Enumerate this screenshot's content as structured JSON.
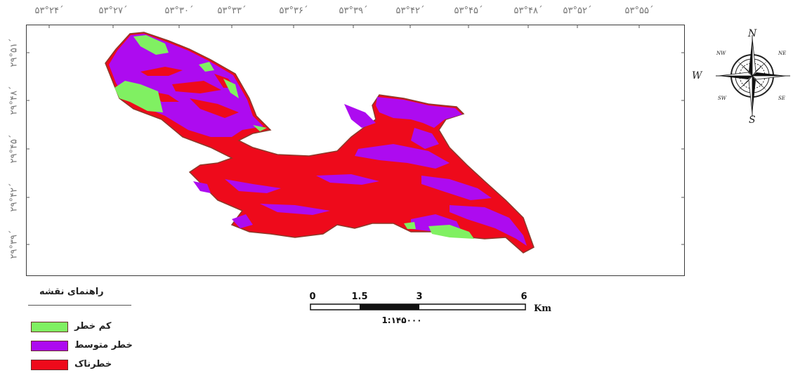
{
  "graticule": {
    "longitudes": [
      "۵۳°۲۴´",
      "۵۳°۲۷´",
      "۵۳°۳۰´",
      "۵۳°۳۳´",
      "۵۳°۳۶´",
      "۵۳°۳۹´",
      "۵۳°۴۲´",
      "۵۳°۴۵´",
      "۵۳°۴۸´",
      "۵۳°۵۲´",
      "۵۳°۵۵´"
    ],
    "latitudes": [
      "۲۹°۵۱´",
      "۲۹°۴۸´",
      "۲۹°۴۵´",
      "۲۹°۴۲´",
      "۲۹°۳۹´"
    ]
  },
  "legend": {
    "title": "راهنمای نقشه",
    "items": [
      {
        "label": "کم خطر",
        "color": "#80f062"
      },
      {
        "label": "خطر متوسط",
        "color": "#ad0bf0"
      },
      {
        "label": "خطرناک",
        "color": "#ee0a1b"
      }
    ]
  },
  "scale_bar": {
    "ticks": [
      "0",
      "1.5",
      "3",
      "6"
    ],
    "unit": "Km",
    "ratio": "1:۱۴۵۰۰۰"
  },
  "north_arrow": {
    "letters": {
      "n": "N",
      "s": "S",
      "w": "W",
      "nw": "NW",
      "ne": "NE",
      "sw": "SW",
      "se": "SE"
    }
  },
  "colors": {
    "outline": "#8b3a2a",
    "frame": "#3a3a3a"
  }
}
